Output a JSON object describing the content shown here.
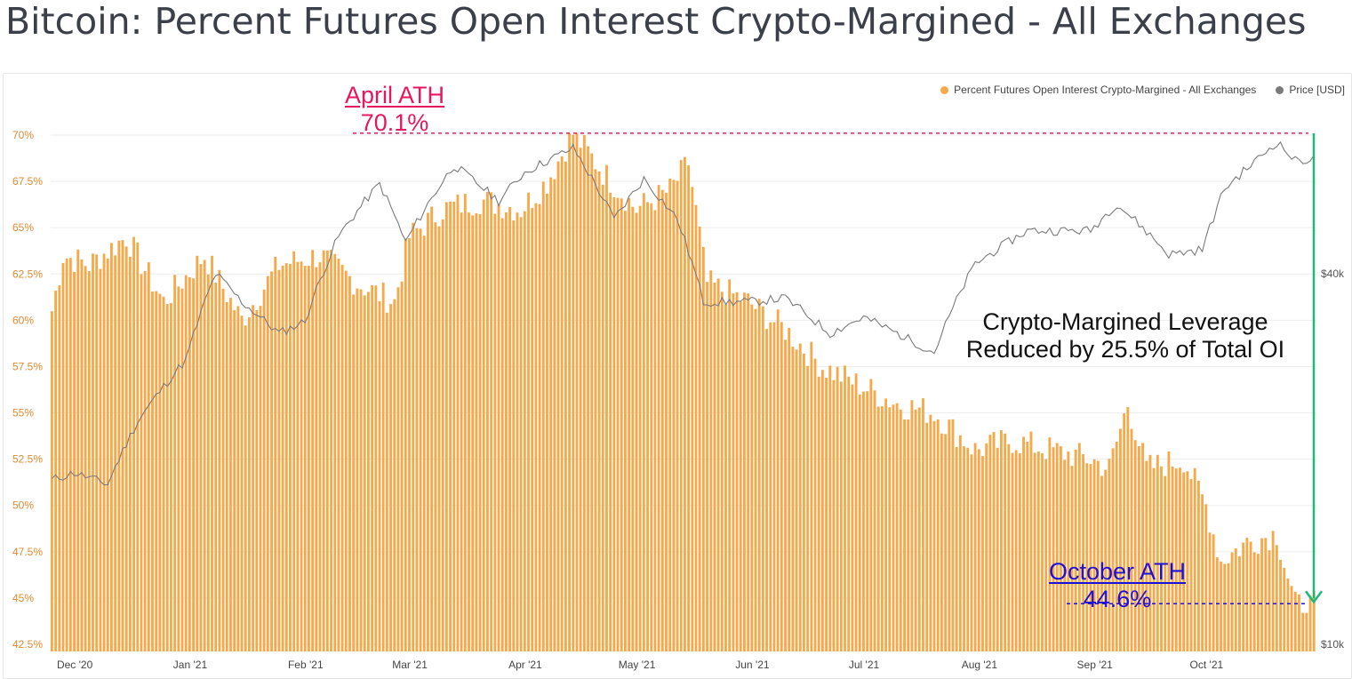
{
  "title": "Bitcoin: Percent Futures Open Interest Crypto-Margined - All Exchanges",
  "legend": {
    "series_a": "Percent Futures Open Interest Crypto-Margined - All Exchanges",
    "series_b": "Price [USD]"
  },
  "colors": {
    "bar": "#f7a94a",
    "price": "#7a7a7a",
    "april": "#e8175d",
    "october": "#1f10d8",
    "arrow": "#1db87a",
    "axis_left": "#e08a2e"
  },
  "annotations": {
    "april_title": "April ATH",
    "april_value": "70.1%",
    "october_title": "October ATH",
    "october_value": "44.6%",
    "middle_line1": "Crypto-Margined Leverage",
    "middle_line2": "Reduced by 25.5% of Total OI"
  },
  "chart_data": {
    "type": "bar",
    "title": "Bitcoin: Percent Futures Open Interest Crypto-Margined - All Exchanges",
    "x_range": [
      "2020-11-25",
      "2021-10-30"
    ],
    "x_ticks": [
      "Dec '20",
      "Jan '21",
      "Feb '21",
      "Mar '21",
      "Apr '21",
      "May '21",
      "Jun '21",
      "Jul '21",
      "Aug '21",
      "Sep '21",
      "Oct '21"
    ],
    "y_left": {
      "ticks": [
        "42.5%",
        "45%",
        "47.5%",
        "50%",
        "52.5%",
        "55%",
        "57.5%",
        "60%",
        "62.5%",
        "65%",
        "67.5%",
        "70%"
      ],
      "ylim": [
        42.5,
        71
      ]
    },
    "y_right": {
      "ticks": [
        "$10k",
        "$40k"
      ],
      "scale": "log"
    },
    "series": [
      {
        "name": "Percent Futures Open Interest Crypto-Margined - All Exchanges",
        "type": "bar",
        "keypoints": [
          [
            "2020-11-25",
            60.5
          ],
          [
            "2020-11-28",
            63.5
          ],
          [
            "2020-12-05",
            63.0
          ],
          [
            "2020-12-15",
            64.5
          ],
          [
            "2020-12-25",
            61.0
          ],
          [
            "2021-01-05",
            63.5
          ],
          [
            "2021-01-15",
            60.0
          ],
          [
            "2021-01-25",
            63.0
          ],
          [
            "2021-02-05",
            63.5
          ],
          [
            "2021-02-15",
            62.0
          ],
          [
            "2021-02-25",
            61.0
          ],
          [
            "2021-03-01",
            64.5
          ],
          [
            "2021-03-10",
            66.0
          ],
          [
            "2021-03-20",
            66.5
          ],
          [
            "2021-03-31",
            66.0
          ],
          [
            "2021-04-07",
            67.5
          ],
          [
            "2021-04-14",
            70.1
          ],
          [
            "2021-04-22",
            68.0
          ],
          [
            "2021-05-01",
            66.0
          ],
          [
            "2021-05-10",
            67.0
          ],
          [
            "2021-05-15",
            68.5
          ],
          [
            "2021-05-20",
            62.0
          ],
          [
            "2021-05-31",
            61.0
          ],
          [
            "2021-06-10",
            59.5
          ],
          [
            "2021-06-20",
            57.5
          ],
          [
            "2021-06-30",
            56.5
          ],
          [
            "2021-07-10",
            55.5
          ],
          [
            "2021-07-20",
            55.0
          ],
          [
            "2021-07-31",
            53.0
          ],
          [
            "2021-08-10",
            53.5
          ],
          [
            "2021-08-20",
            53.0
          ],
          [
            "2021-08-31",
            52.5
          ],
          [
            "2021-09-05",
            52.0
          ],
          [
            "2021-09-10",
            55.5
          ],
          [
            "2021-09-15",
            52.0
          ],
          [
            "2021-09-25",
            52.5
          ],
          [
            "2021-10-01",
            50.0
          ],
          [
            "2021-10-05",
            47.0
          ],
          [
            "2021-10-12",
            48.0
          ],
          [
            "2021-10-20",
            48.5
          ],
          [
            "2021-10-25",
            44.6
          ],
          [
            "2021-10-30",
            44.6
          ]
        ]
      },
      {
        "name": "Price [USD]",
        "type": "line",
        "keypoints": [
          [
            "2020-11-25",
            18500
          ],
          [
            "2020-12-01",
            19000
          ],
          [
            "2020-12-10",
            18200
          ],
          [
            "2020-12-18",
            23000
          ],
          [
            "2020-12-31",
            29000
          ],
          [
            "2021-01-08",
            40000
          ],
          [
            "2021-01-15",
            36000
          ],
          [
            "2021-01-25",
            32000
          ],
          [
            "2021-02-01",
            33500
          ],
          [
            "2021-02-10",
            46000
          ],
          [
            "2021-02-21",
            56000
          ],
          [
            "2021-02-28",
            45000
          ],
          [
            "2021-03-13",
            60000
          ],
          [
            "2021-03-25",
            52500
          ],
          [
            "2021-04-01",
            58500
          ],
          [
            "2021-04-14",
            64000
          ],
          [
            "2021-04-25",
            49000
          ],
          [
            "2021-05-03",
            57000
          ],
          [
            "2021-05-12",
            49000
          ],
          [
            "2021-05-19",
            36000
          ],
          [
            "2021-05-31",
            36000
          ],
          [
            "2021-06-10",
            36500
          ],
          [
            "2021-06-22",
            32000
          ],
          [
            "2021-07-01",
            34000
          ],
          [
            "2021-07-20",
            29800
          ],
          [
            "2021-07-31",
            41500
          ],
          [
            "2021-08-14",
            47000
          ],
          [
            "2021-08-31",
            47000
          ],
          [
            "2021-09-07",
            52000
          ],
          [
            "2021-09-21",
            43000
          ],
          [
            "2021-09-30",
            43800
          ],
          [
            "2021-10-06",
            55000
          ],
          [
            "2021-10-15",
            61500
          ],
          [
            "2021-10-20",
            65500
          ],
          [
            "2021-10-25",
            61000
          ],
          [
            "2021-10-30",
            61500
          ]
        ]
      }
    ],
    "reference_lines": [
      {
        "label": "April ATH",
        "value": 70.1
      },
      {
        "label": "October ATH",
        "value": 44.6
      }
    ],
    "legend_position": "top-right",
    "grid": "horizontal"
  }
}
